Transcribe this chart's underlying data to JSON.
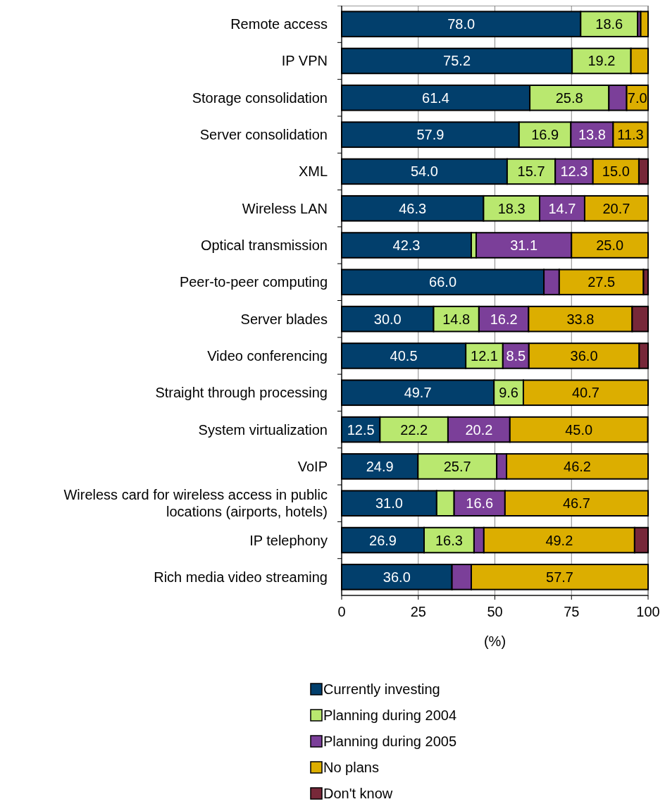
{
  "chart_data": {
    "type": "bar",
    "orientation": "horizontal",
    "stacked": true,
    "categories": [
      "Remote access",
      "IP VPN",
      "Storage consolidation",
      "Server consolidation",
      "XML",
      "Wireless LAN",
      "Optical transmission",
      "Peer-to-peer computing",
      "Server blades",
      "Video conferencing",
      "Straight through processing",
      "System virtualization",
      "VoIP",
      "Wireless card for wireless access in public locations (airports, hotels)",
      "IP telephony",
      "Rich media video streaming"
    ],
    "series": [
      {
        "name": "Currently investing",
        "color": "#023f6c",
        "values": [
          78.0,
          75.2,
          61.4,
          57.9,
          54.0,
          46.3,
          42.3,
          66.0,
          30.0,
          40.5,
          49.7,
          12.5,
          24.9,
          31.0,
          26.9,
          36.0
        ],
        "value_labels": [
          "78.0",
          "75.2",
          "61.4",
          "57.9",
          "54.0",
          "46.3",
          "42.3",
          "66.0",
          "30.0",
          "40.5",
          "49.7",
          "12.5",
          "24.9",
          "31.0",
          "26.9",
          "36.0"
        ]
      },
      {
        "name": "Planning during 2004",
        "color": "#b9e86f",
        "values": [
          18.6,
          19.2,
          25.8,
          16.9,
          15.7,
          18.3,
          1.6,
          null,
          14.8,
          12.1,
          9.6,
          22.2,
          25.7,
          5.7,
          16.3,
          null
        ],
        "value_labels": [
          "18.6",
          "19.2",
          "25.8",
          "16.9",
          "15.7",
          "18.3",
          null,
          null,
          "14.8",
          "12.1",
          "9.6",
          "22.2",
          "25.7",
          null,
          "16.3",
          null
        ]
      },
      {
        "name": "Planning during 2005",
        "color": "#7b3f99",
        "values": [
          1.0,
          null,
          5.8,
          13.8,
          12.3,
          14.7,
          31.1,
          5.0,
          16.2,
          8.5,
          null,
          20.2,
          3.2,
          16.6,
          3.2,
          6.3
        ],
        "value_labels": [
          null,
          null,
          null,
          "13.8",
          "12.3",
          "14.7",
          "31.1",
          null,
          "16.2",
          "8.5",
          null,
          "20.2",
          null,
          "16.6",
          null,
          null
        ]
      },
      {
        "name": "No plans",
        "color": "#dcae00",
        "values": [
          2.4,
          5.6,
          7.0,
          11.3,
          15.0,
          20.7,
          25.0,
          27.5,
          33.8,
          36.0,
          40.7,
          45.0,
          46.2,
          46.7,
          49.2,
          57.7
        ],
        "value_labels": [
          null,
          null,
          "7.0",
          "11.3",
          "15.0",
          "20.7",
          "25.0",
          "27.5",
          "33.8",
          "36.0",
          "40.7",
          "45.0",
          "46.2",
          "46.7",
          "49.2",
          "57.7"
        ]
      },
      {
        "name": "Don't know",
        "color": "#772839",
        "values": [
          null,
          null,
          null,
          null,
          3.0,
          null,
          null,
          1.5,
          5.2,
          2.9,
          null,
          null,
          null,
          null,
          4.4,
          null
        ]
      }
    ],
    "xlim": [
      0,
      100
    ],
    "xticks": [
      0,
      25,
      50,
      75,
      100
    ],
    "xlabel": "(%)",
    "grid": "x",
    "legend": "bottom"
  }
}
